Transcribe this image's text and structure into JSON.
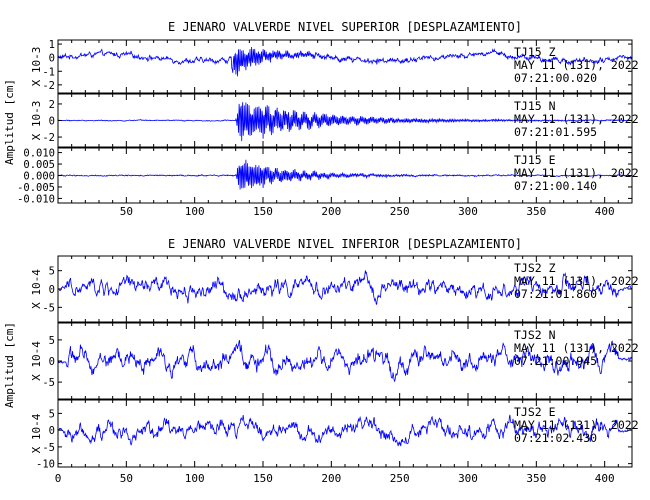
{
  "colors": {
    "trace": "#0000ff",
    "axis": "#000000",
    "background": "#ffffff"
  },
  "chart_data": [
    {
      "type": "line",
      "title": "E JENARO VALVERDE NIVEL SUPERIOR [DESPLAZAMIENTO]",
      "ylabel": "Amplitud [cm]",
      "xlim": [
        0,
        420
      ],
      "xticks": [
        "50",
        "100",
        "150",
        "200",
        "250",
        "300",
        "350",
        "400"
      ],
      "grid": false,
      "panels": [
        {
          "name": "superior-z",
          "scale_label": "X 10-3",
          "yticks": [
            "1",
            "0",
            "-1",
            "-2"
          ],
          "ylim": [
            -2.6,
            1.3
          ],
          "station": "TJ15  Z",
          "date": "MAY 11 (131), 2022",
          "time": "07:21:00.020",
          "base_noise": 0.3,
          "event": {
            "start": 127,
            "peak": 1.3,
            "decay": 20,
            "period": 1.2,
            "ring": 0
          }
        },
        {
          "name": "superior-n",
          "scale_label": "X 10-3",
          "yticks": [
            "2",
            "0",
            "-2"
          ],
          "ylim": [
            -3.2,
            3.2
          ],
          "station": "TJ15  N",
          "date": "MAY 11 (131), 2022",
          "time": "07:21:01.595",
          "base_noise": 0.08,
          "event": {
            "start": 130,
            "peak": 2.9,
            "decay": 40,
            "period": 1.2,
            "ring": 40
          }
        },
        {
          "name": "superior-e",
          "scale_label": "",
          "yticks": [
            "0.010",
            "0.005",
            "0.000",
            "-0.005",
            "-0.010"
          ],
          "ylim": [
            -0.012,
            0.012
          ],
          "station": "TJ15  E",
          "date": "MAY 11 (131), 2022",
          "time": "07:21:00.140",
          "base_noise": 0.0004,
          "event": {
            "start": 130,
            "peak": 0.009,
            "decay": 25,
            "period": 1.2,
            "ring": 30
          }
        }
      ]
    },
    {
      "type": "line",
      "title": "E JENARO VALVERDE NIVEL INFERIOR [DESPLAZAMIENTO]",
      "ylabel": "Amplitud [cm]",
      "xlim": [
        0,
        420
      ],
      "xticks": [
        "0",
        "50",
        "100",
        "150",
        "200",
        "250",
        "300",
        "350",
        "400"
      ],
      "grid": false,
      "panels": [
        {
          "name": "inferior-z",
          "scale_label": "X 10-4",
          "yticks": [
            "5",
            "0",
            "-5"
          ],
          "ylim": [
            -9,
            9
          ],
          "station": "TJS2  Z",
          "date": "MAY 11 (131), 2022",
          "time": "07:21:01.860",
          "base_noise": 3.2
        },
        {
          "name": "inferior-n",
          "scale_label": "X 10-4",
          "yticks": [
            "5",
            "0",
            "-5"
          ],
          "ylim": [
            -9,
            9
          ],
          "station": "TJS2  N",
          "date": "MAY 11 (131), 2022",
          "time": "07:21:00.945",
          "base_noise": 3.2
        },
        {
          "name": "inferior-e",
          "scale_label": "X 10-4",
          "yticks": [
            "5",
            "0",
            "-5",
            "-10"
          ],
          "ylim": [
            -11,
            9
          ],
          "station": "TJS2  E",
          "date": "MAY 11 (131), 2022",
          "time": "07:21:02.430",
          "base_noise": 3.4
        }
      ]
    }
  ]
}
